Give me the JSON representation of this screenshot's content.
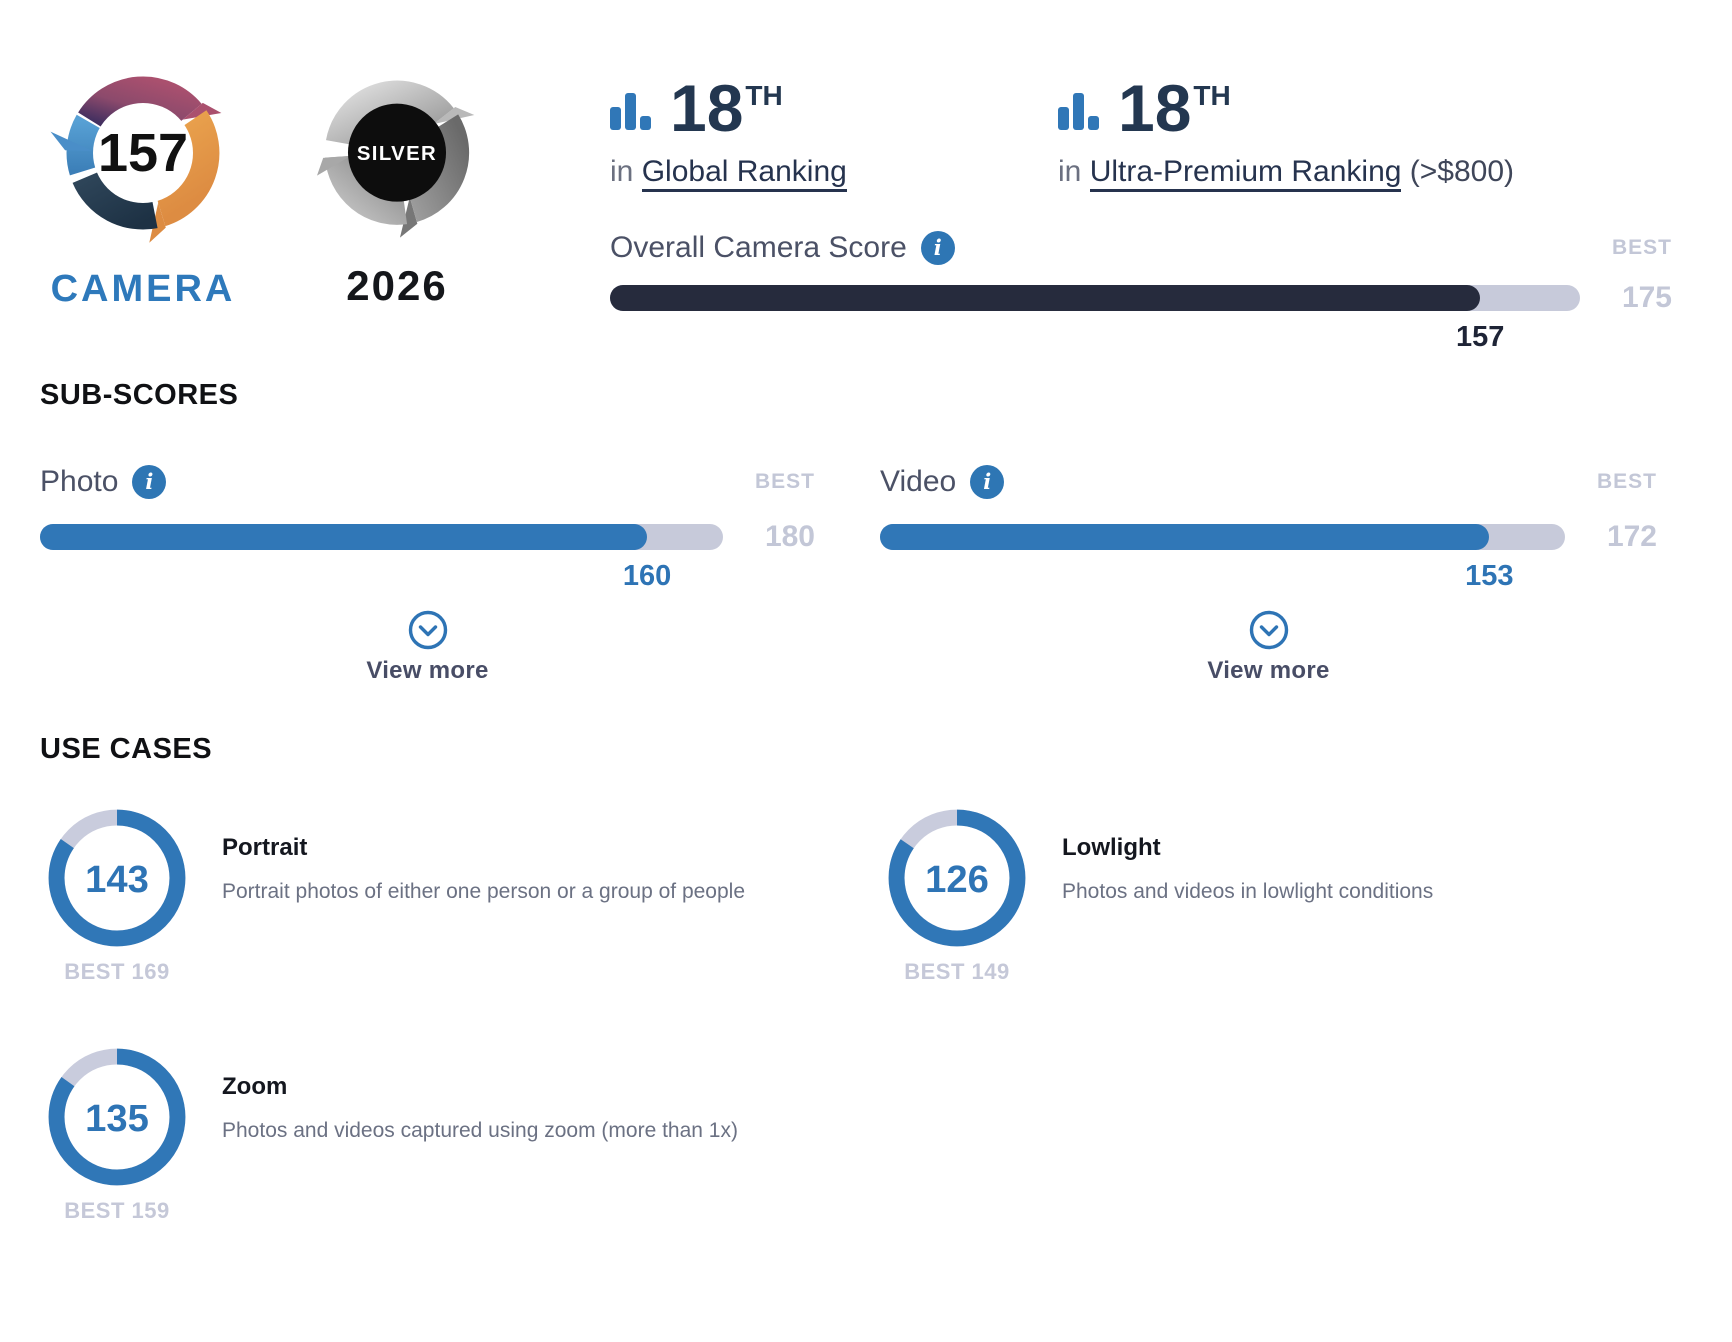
{
  "colors": {
    "accent_blue": "#3077b7",
    "overall_fill_dark": "#262b3d",
    "track_gray": "#c7cada",
    "muted_lavender": "#c3c7d7",
    "dark_navy_text": "#233750",
    "body_gray_text": "#6b7183",
    "camera_wordmark_blue": "#2e79bb"
  },
  "labels": {
    "best": "BEST"
  },
  "logo": {
    "score": "157",
    "label": "CAMERA"
  },
  "award": {
    "label": "SILVER",
    "year": "2026"
  },
  "rankings": [
    {
      "rank": "18",
      "suffix": "TH",
      "prefix": "in",
      "link": "Global Ranking",
      "note": ""
    },
    {
      "rank": "18",
      "suffix": "TH",
      "prefix": "in",
      "link": "Ultra-Premium Ranking",
      "note": "(>$800)"
    }
  ],
  "overall": {
    "label": "Overall Camera Score",
    "value": 157,
    "best": 175
  },
  "subscores": {
    "heading": "SUB-SCORES",
    "view_more": "View more",
    "items": [
      {
        "label": "Photo",
        "value": 160,
        "best": 180
      },
      {
        "label": "Video",
        "value": 153,
        "best": 172
      }
    ]
  },
  "use_cases": {
    "heading": "USE CASES",
    "best_prefix": "BEST",
    "items": [
      {
        "title": "Portrait",
        "value": 143,
        "best": 169,
        "description": "Portrait photos of either one person or a group of people"
      },
      {
        "title": "Lowlight",
        "value": 126,
        "best": 149,
        "description": "Photos and videos in lowlight conditions"
      },
      {
        "title": "Zoom",
        "value": 135,
        "best": 159,
        "description": "Photos and videos captured using zoom (more than 1x)"
      }
    ]
  },
  "chart_data": [
    {
      "type": "bar",
      "title": "Overall Camera Score",
      "categories": [
        "Overall"
      ],
      "values": [
        157
      ],
      "xlim": [
        0,
        175
      ],
      "annotations": [
        "BEST 175"
      ]
    },
    {
      "type": "bar",
      "title": "Sub-scores",
      "categories": [
        "Photo",
        "Video"
      ],
      "values": [
        160,
        153
      ],
      "best": [
        180,
        172
      ]
    },
    {
      "type": "pie",
      "title": "Use cases (donut gauges, fraction of best)",
      "categories": [
        "Portrait",
        "Lowlight",
        "Zoom"
      ],
      "values": [
        143,
        126,
        135
      ],
      "best": [
        169,
        149,
        159
      ]
    }
  ]
}
